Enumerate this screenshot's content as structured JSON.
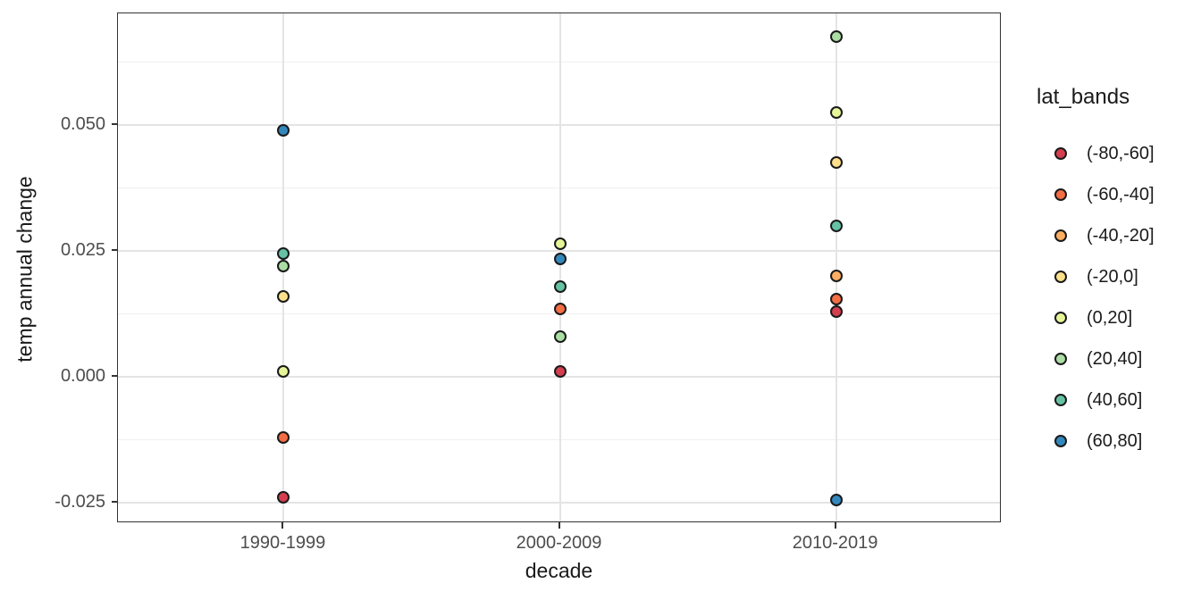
{
  "chart_data": {
    "type": "scatter",
    "title": "",
    "xlabel": "decade",
    "ylabel": "temp annual change",
    "x_categories": [
      "1990-1999",
      "2000-2009",
      "2010-2019"
    ],
    "x_positions": [
      0.1875,
      0.5,
      0.8125
    ],
    "ylim": [
      -0.0291,
      0.0722
    ],
    "y_major_ticks": [
      -0.025,
      0.0,
      0.025,
      0.05
    ],
    "y_major_tick_labels": [
      "-0.025",
      "0.000",
      "0.025",
      "0.050"
    ],
    "y_minor_ticks": [
      -0.0125,
      0.0125,
      0.0375,
      0.0625
    ],
    "grid": true,
    "legend_position": "right",
    "legend_title": "lat_bands",
    "series": [
      {
        "name": "(-80,-60]",
        "color": "#d53e4f",
        "points": [
          {
            "x": "1990-1999",
            "y": -0.024
          },
          {
            "x": "2000-2009",
            "y": 0.001
          },
          {
            "x": "2010-2019",
            "y": 0.013
          }
        ]
      },
      {
        "name": "(-60,-40]",
        "color": "#f46d43",
        "points": [
          {
            "x": "1990-1999",
            "y": -0.012
          },
          {
            "x": "2000-2009",
            "y": 0.0135
          },
          {
            "x": "2010-2019",
            "y": 0.0155
          }
        ]
      },
      {
        "name": "(-40,-20]",
        "color": "#fdae61",
        "points": [
          {
            "x": "2010-2019",
            "y": 0.02
          }
        ]
      },
      {
        "name": "(-20,0]",
        "color": "#fee08b",
        "points": [
          {
            "x": "1990-1999",
            "y": 0.016
          },
          {
            "x": "2010-2019",
            "y": 0.0425
          }
        ]
      },
      {
        "name": "(0,20]",
        "color": "#e6f598",
        "points": [
          {
            "x": "1990-1999",
            "y": 0.001
          },
          {
            "x": "2000-2009",
            "y": 0.0265
          },
          {
            "x": "2010-2019",
            "y": 0.0525
          }
        ]
      },
      {
        "name": "(20,40]",
        "color": "#abdda4",
        "points": [
          {
            "x": "1990-1999",
            "y": 0.022
          },
          {
            "x": "2000-2009",
            "y": 0.008
          },
          {
            "x": "2010-2019",
            "y": 0.0675
          }
        ]
      },
      {
        "name": "(40,60]",
        "color": "#66c2a5",
        "points": [
          {
            "x": "1990-1999",
            "y": 0.0245
          },
          {
            "x": "2000-2009",
            "y": 0.018
          },
          {
            "x": "2010-2019",
            "y": 0.03
          }
        ]
      },
      {
        "name": "(60,80]",
        "color": "#3288bd",
        "points": [
          {
            "x": "1990-1999",
            "y": 0.049
          },
          {
            "x": "2000-2009",
            "y": 0.0235
          },
          {
            "x": "2010-2019",
            "y": -0.0245
          }
        ]
      }
    ],
    "style_colors": {
      "panel_border": "#333333",
      "grid_major": "#e4e4e4",
      "grid_minor": "#f0f0f0",
      "tick_mark": "#333333",
      "tick_label": "#4d4d4d",
      "axis_title": "#1a1a1a",
      "point_stroke": "#1a1a1a",
      "background": "#ffffff"
    }
  }
}
